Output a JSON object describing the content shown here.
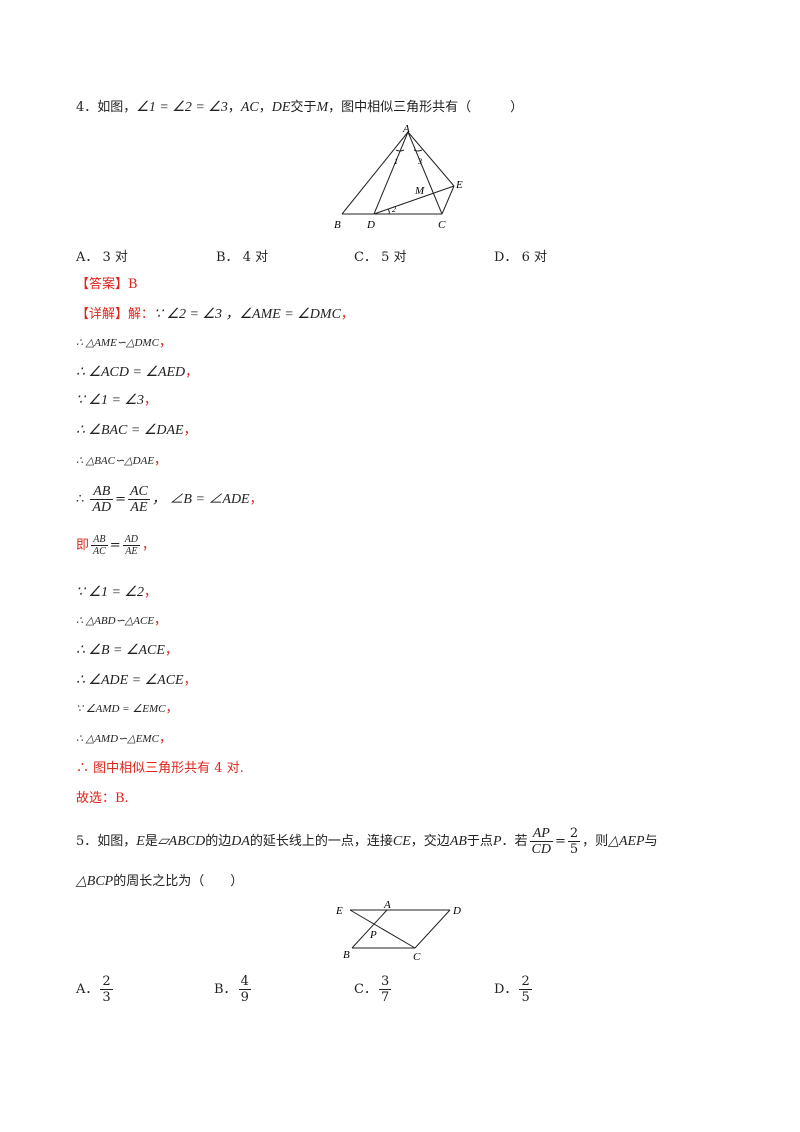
{
  "q4": {
    "number": "4．",
    "intro": "如图，",
    "cond": "∠1 = ∠2 = ∠3",
    "sep1": "，",
    "seg1": "AC",
    "sep2": "，",
    "seg2": "DE",
    "meet": "交于",
    "point": "M",
    "ask": "，图中相似三角形共有（　　　）",
    "figure_labels": {
      "A": "A",
      "B": "B",
      "D": "D",
      "C": "C",
      "E": "E",
      "M": "M",
      "one": "1",
      "two": "2",
      "three": "3"
    },
    "options": [
      {
        "letter": "A．",
        "text": "3 对"
      },
      {
        "letter": "B．",
        "text": "4 对"
      },
      {
        "letter": "C．",
        "text": "5 对"
      },
      {
        "letter": "D．",
        "text": "6 对"
      }
    ],
    "answer_tag": "【答案】",
    "answer": "B",
    "detail_tag": "【详解】",
    "detail_pre": "解：",
    "steps": {
      "s1": "∵ ∠2 = ∠3 ，∠AME = ∠DMC",
      "s2": "∴ △AME∽△DMC",
      "s3": "∴ ∠ACD = ∠AED",
      "s4": "∵ ∠1 = ∠3",
      "s5": "∴ ∠BAC = ∠DAE",
      "s6": "∴ △BAC∽△DAE",
      "s7_pre": "∴",
      "s7_f1n": "AB",
      "s7_f1d": "AD",
      "s7_eq": "=",
      "s7_f2n": "AC",
      "s7_f2d": "AE",
      "s7_tail": "， ∠B = ∠ADE",
      "s8_pre": "即",
      "s8_f1n": "AB",
      "s8_f1d": "AC",
      "s8_eq": "=",
      "s8_f2n": "AD",
      "s8_f2d": "AE",
      "s9": "∵ ∠1 = ∠2",
      "s10": "∴ △ABD∽△ACE",
      "s11": "∴ ∠B = ∠ACE",
      "s12": "∴ ∠ADE = ∠ACE",
      "s13": "∵ ∠AMD = ∠EMC",
      "s14": "∴ △AMD∽△EMC",
      "s15": "∴ 图中相似三角形共有 4 对.",
      "s16": "故选：B."
    },
    "comma": "，"
  },
  "q5": {
    "number": "5．",
    "intro": "如图，",
    "E": "E",
    "is": "是",
    "para": "▱ABCD",
    "edge": "的边",
    "DA": "DA",
    "ext": "的延长线上的一点，连接",
    "CE": "CE",
    "cross": "，交边",
    "AB": "AB",
    "at": "于点",
    "P": "P",
    "if": "．若",
    "frac_ln": "AP",
    "frac_ld": "CD",
    "frac_eq": "=",
    "frac_rn": "2",
    "frac_rd": "5",
    "then": "，则",
    "tri1": "△AEP",
    "and": "与",
    "tri2": "△BCP",
    "ratio": "的周长之比为（　　）",
    "figure_labels": {
      "E": "E",
      "A": "A",
      "D": "D",
      "P": "P",
      "B": "B",
      "C": "C"
    },
    "options": [
      {
        "letter": "A．",
        "num": "2",
        "den": "3"
      },
      {
        "letter": "B．",
        "num": "4",
        "den": "9"
      },
      {
        "letter": "C．",
        "num": "3",
        "den": "7"
      },
      {
        "letter": "D．",
        "num": "2",
        "den": "5"
      }
    ]
  }
}
